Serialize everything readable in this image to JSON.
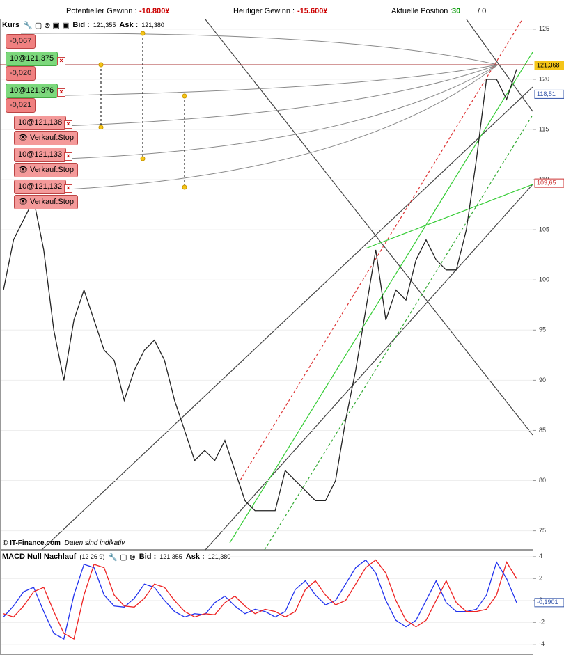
{
  "header": {
    "potential_label": "Potentieller Gewinn :",
    "potential_value": "-10.800¥",
    "today_label": "Heutiger Gewinn :",
    "today_value": "-15.600¥",
    "position_label": "Aktuelle Position :",
    "position_value": "30",
    "position_rest": "/ 0"
  },
  "toolbar": {
    "title": "Kurs",
    "bid_label": "Bid :",
    "bid": "121,355",
    "ask_label": "Ask :",
    "ask": "121,380"
  },
  "orders": {
    "o1_pl": "-0,067",
    "o2": "10@121,375",
    "o2_pl": "-0,020",
    "o3": "10@121,376",
    "o3_pl": "-0,021",
    "s1": "10@121,138",
    "s1_type": "Verkauf:Stop",
    "s2": "10@121,133",
    "s2_type": "Verkauf:Stop",
    "s3": "10@121,132",
    "s3_type": "Verkauf:Stop"
  },
  "footer": {
    "copyright": "© IT-Finance.com",
    "note": "Daten sind indikativ"
  },
  "macd_toolbar": {
    "title": "MACD Null Nachlauf",
    "params": "(12 26 9)",
    "bid_label": "Bid :",
    "bid": "121,355",
    "ask_label": "Ask :",
    "ask": "121,380"
  },
  "chart_data": [
    {
      "type": "line",
      "categories": [
        null,
        null,
        null,
        null,
        null,
        null,
        null,
        null,
        null,
        null,
        null,
        null,
        null,
        null,
        null,
        null,
        null,
        null,
        null,
        null,
        null,
        null,
        null,
        null,
        null,
        null,
        null,
        null,
        null,
        null,
        null,
        null,
        null,
        null,
        null,
        null,
        null,
        null,
        null,
        null,
        null,
        null,
        null,
        null,
        null,
        null,
        null,
        null,
        null,
        null,
        null,
        null
      ],
      "series": [
        {
          "color": "#222222",
          "values": [
            99,
            104,
            106,
            108,
            103,
            95,
            90,
            96,
            99,
            96,
            93,
            92,
            88,
            91,
            93,
            94,
            92,
            88,
            85,
            82,
            83,
            82,
            84,
            81,
            78,
            77,
            77,
            77,
            81,
            80,
            79,
            78,
            78,
            80,
            86,
            91,
            97,
            103,
            96,
            99,
            98,
            102,
            104,
            102,
            101,
            101,
            105,
            112,
            120,
            120,
            118,
            121
          ]
        }
      ],
      "ylim": [
        73.1,
        126.1
      ],
      "yticks": [
        75,
        80,
        85,
        90,
        95,
        100,
        105,
        110,
        115,
        120,
        125
      ],
      "grid": true,
      "markers": [
        {
          "value": 121.368,
          "label": "121,368",
          "color": "#f5c518"
        },
        {
          "value": 118.51,
          "label": "118,51",
          "color": "#3355aa"
        },
        {
          "value": 109.65,
          "label": "109,65",
          "color": "#cc3333"
        }
      ]
    },
    {
      "type": "line",
      "categories": [
        null,
        null,
        null,
        null,
        null,
        null,
        null,
        null,
        null,
        null,
        null,
        null,
        null,
        null,
        null,
        null,
        null,
        null,
        null,
        null,
        null,
        null,
        null,
        null,
        null,
        null,
        null,
        null,
        null,
        null,
        null,
        null,
        null,
        null,
        null,
        null,
        null,
        null,
        null,
        null,
        null,
        null,
        null,
        null,
        null,
        null,
        null,
        null,
        null,
        null,
        null,
        null
      ],
      "series": [
        {
          "color": "#2233ee",
          "values": [
            -1.5,
            -0.5,
            0.8,
            1.2,
            -1,
            -3,
            -3.5,
            0.5,
            3.3,
            3,
            0.5,
            -0.5,
            -0.6,
            0.2,
            1.5,
            1.2,
            0,
            -1,
            -1.5,
            -1.2,
            -1.3,
            -0.2,
            0.4,
            -0.5,
            -1.2,
            -0.8,
            -1,
            -1.5,
            -1,
            1,
            1.8,
            0.5,
            -0.4,
            0,
            1.5,
            3,
            3.7,
            2.5,
            0,
            -1.8,
            -2.4,
            -1.8,
            0,
            1.8,
            -0.2,
            -1,
            -1,
            -0.8,
            0.5,
            3.5,
            2,
            -0.2
          ]
        },
        {
          "color": "#ee2222",
          "values": [
            -1.2,
            -1.5,
            -0.5,
            0.8,
            1.2,
            -1,
            -3,
            -3.5,
            0.5,
            3.3,
            3,
            0.5,
            -0.5,
            -0.6,
            0.2,
            1.5,
            1.2,
            0,
            -1,
            -1.5,
            -1.2,
            -1.3,
            -0.2,
            0.4,
            -0.5,
            -1.2,
            -0.8,
            -1,
            -1.5,
            -1,
            1,
            1.8,
            0.5,
            -0.4,
            0,
            1.5,
            3,
            3.7,
            2.5,
            0,
            -1.8,
            -2.4,
            -1.8,
            0,
            1.8,
            -0.2,
            -1,
            -1,
            -0.8,
            0.5,
            3.5,
            2
          ]
        }
      ],
      "ylim": [
        -4.9,
        4.5
      ],
      "yticks": [
        -4,
        -2,
        0,
        2,
        4
      ],
      "grid": true,
      "markers": [
        {
          "value": -0.1901,
          "label": "-0,1901",
          "color": "#3355aa"
        }
      ]
    }
  ]
}
